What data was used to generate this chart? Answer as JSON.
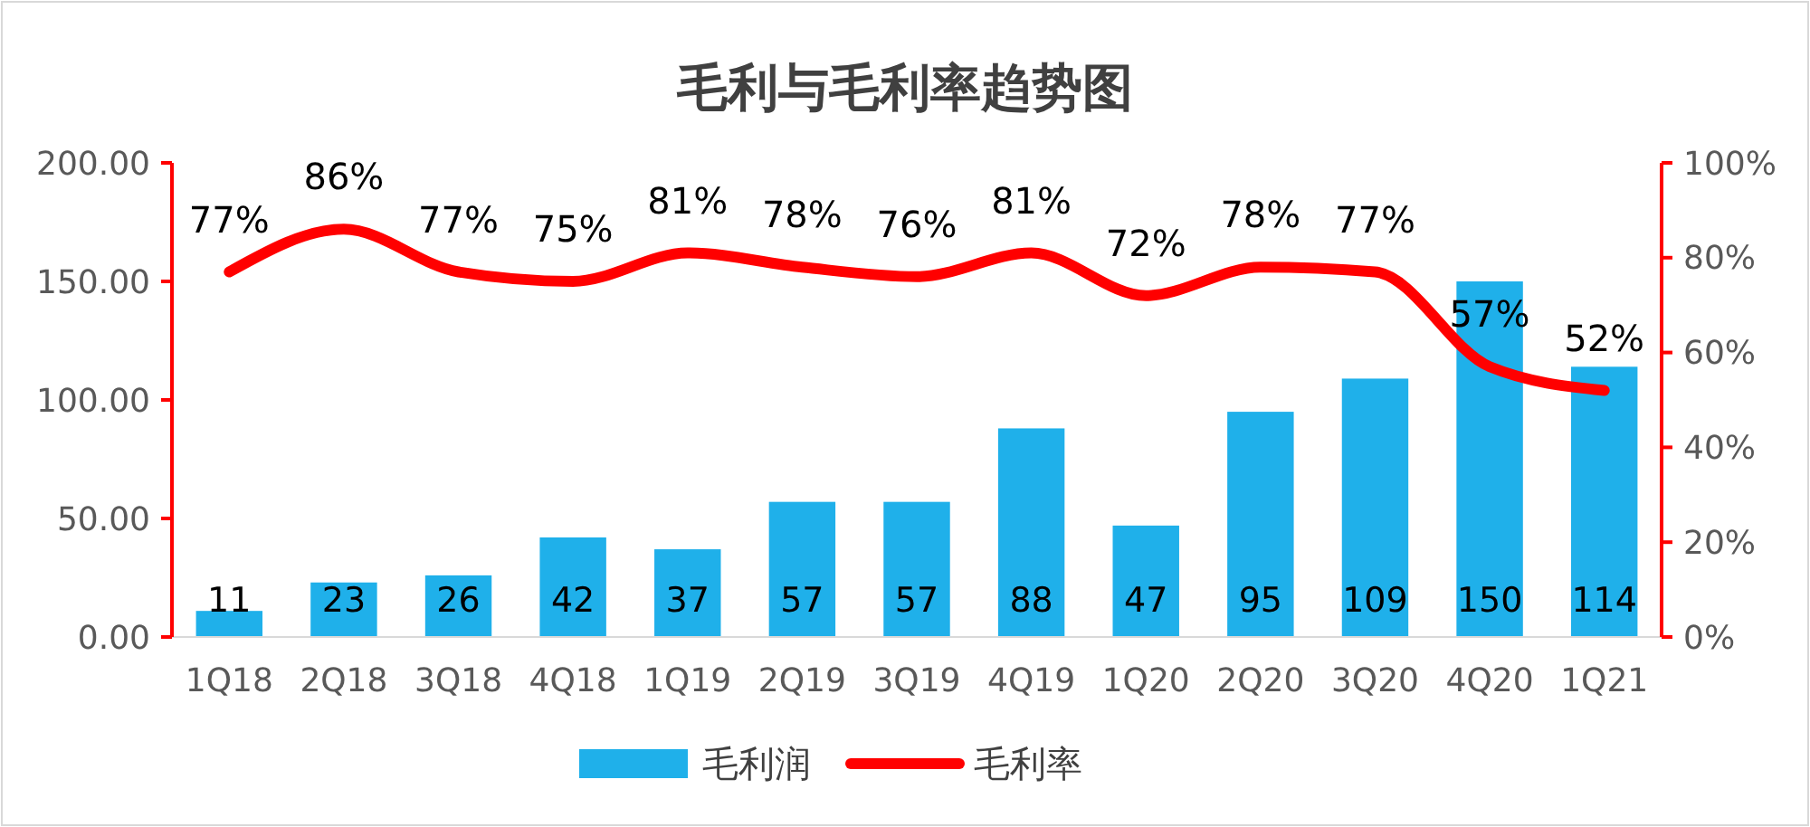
{
  "chart_data": {
    "type": "bar",
    "title": "毛利与毛利率趋势图",
    "categories": [
      "1Q18",
      "2Q18",
      "3Q18",
      "4Q18",
      "1Q19",
      "2Q19",
      "3Q19",
      "4Q19",
      "1Q20",
      "2Q20",
      "3Q20",
      "4Q20",
      "1Q21"
    ],
    "series": [
      {
        "name": "毛利润",
        "color": "#1fb0ea",
        "values": [
          11,
          23,
          26,
          42,
          37,
          57,
          57,
          88,
          47,
          95,
          109,
          150,
          114
        ],
        "value_labels": [
          "11",
          "23",
          "26",
          "42",
          "37",
          "57",
          "57",
          "88",
          "47",
          "95",
          "109",
          "150",
          "114"
        ]
      },
      {
        "name": "毛利率",
        "type": "line",
        "axis": "y2",
        "color": "#ff0000",
        "values": [
          77,
          86,
          77,
          75,
          81,
          78,
          76,
          81,
          72,
          78,
          77,
          57,
          52
        ],
        "value_labels": [
          "77%",
          "86%",
          "77%",
          "75%",
          "81%",
          "78%",
          "76%",
          "81%",
          "72%",
          "78%",
          "77%",
          "57%",
          "52%"
        ]
      }
    ],
    "ylim": [
      0,
      200
    ],
    "yticks": [
      {
        "value": 0,
        "label": "0.00"
      },
      {
        "value": 50,
        "label": "50.00"
      },
      {
        "value": 100,
        "label": "100.00"
      },
      {
        "value": 150,
        "label": "150.00"
      },
      {
        "value": 200,
        "label": "200.00"
      }
    ],
    "y2lim": [
      0,
      100
    ],
    "y2ticks": [
      {
        "value": 0,
        "label": "0%"
      },
      {
        "value": 20,
        "label": "20%"
      },
      {
        "value": 40,
        "label": "40%"
      },
      {
        "value": 60,
        "label": "60%"
      },
      {
        "value": 80,
        "label": "80%"
      },
      {
        "value": 100,
        "label": "100%"
      }
    ],
    "legend": "bottom",
    "marker": "none"
  }
}
